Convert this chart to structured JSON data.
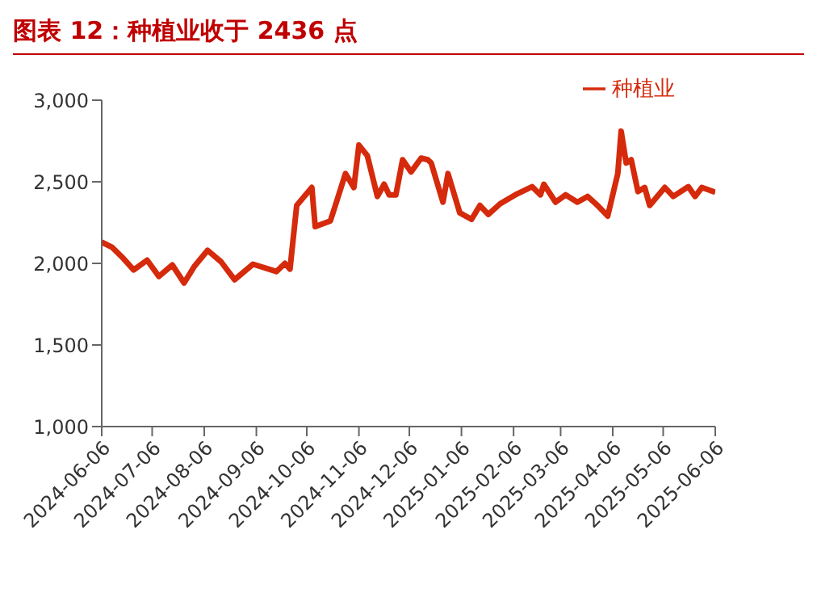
{
  "chart_data": {
    "type": "line",
    "title": "图表 12：种植业收于 2436 点",
    "x": [
      "2024-06-06",
      "2024-06-12",
      "2024-06-18",
      "2024-06-25",
      "2024-07-03",
      "2024-07-10",
      "2024-07-18",
      "2024-07-25",
      "2024-07-31",
      "2024-08-08",
      "2024-08-16",
      "2024-08-24",
      "2024-09-04",
      "2024-09-18",
      "2024-09-23",
      "2024-09-26",
      "2024-09-30",
      "2024-10-09",
      "2024-10-11",
      "2024-10-20",
      "2024-10-23",
      "2024-10-29",
      "2024-11-03",
      "2024-11-06",
      "2024-11-11",
      "2024-11-17",
      "2024-11-21",
      "2024-11-24",
      "2024-11-28",
      "2024-12-02",
      "2024-12-07",
      "2024-12-13",
      "2024-12-17",
      "2024-12-19",
      "2024-12-26",
      "2024-12-29",
      "2025-01-05",
      "2025-01-12",
      "2025-01-17",
      "2025-01-22",
      "2025-01-29",
      "2025-02-07",
      "2025-02-17",
      "2025-02-22",
      "2025-02-24",
      "2025-03-03",
      "2025-03-09",
      "2025-03-16",
      "2025-03-22",
      "2025-03-28",
      "2025-04-03",
      "2025-04-09",
      "2025-04-11",
      "2025-04-14",
      "2025-04-17",
      "2025-04-21",
      "2025-04-25",
      "2025-04-28",
      "2025-05-07",
      "2025-05-12",
      "2025-05-21",
      "2025-05-25",
      "2025-05-29",
      "2025-06-06"
    ],
    "series": [
      {
        "name": "种植业",
        "color": "#d52a0b",
        "values": [
          2130,
          2100,
          2040,
          1960,
          2020,
          1920,
          1990,
          1880,
          1980,
          2080,
          2010,
          1900,
          1995,
          1950,
          2000,
          1965,
          2355,
          2465,
          2225,
          2260,
          2355,
          2550,
          2465,
          2725,
          2660,
          2410,
          2485,
          2420,
          2420,
          2635,
          2560,
          2645,
          2635,
          2615,
          2375,
          2550,
          2310,
          2270,
          2355,
          2300,
          2365,
          2420,
          2470,
          2420,
          2485,
          2375,
          2420,
          2375,
          2410,
          2355,
          2290,
          2550,
          2810,
          2615,
          2635,
          2440,
          2465,
          2355,
          2465,
          2410,
          2470,
          2410,
          2465,
          2436
        ]
      }
    ],
    "ylim": [
      1000,
      3000
    ],
    "yticks": [
      {
        "value": 1000,
        "label": "1,000"
      },
      {
        "value": 1500,
        "label": "1,500"
      },
      {
        "value": 2000,
        "label": "2,000"
      },
      {
        "value": 2500,
        "label": "2,500"
      },
      {
        "value": 3000,
        "label": "3,000"
      }
    ],
    "xlim": [
      "2024-06-06",
      "2025-06-06"
    ],
    "xticks": [
      "2024-06-06",
      "2024-07-06",
      "2024-08-06",
      "2024-09-06",
      "2024-10-06",
      "2024-11-06",
      "2024-12-06",
      "2025-01-06",
      "2025-02-06",
      "2025-03-06",
      "2025-04-06",
      "2025-05-06",
      "2025-06-06"
    ],
    "grid": false,
    "legend": "top right",
    "marker": "none",
    "line_style": "solid"
  }
}
